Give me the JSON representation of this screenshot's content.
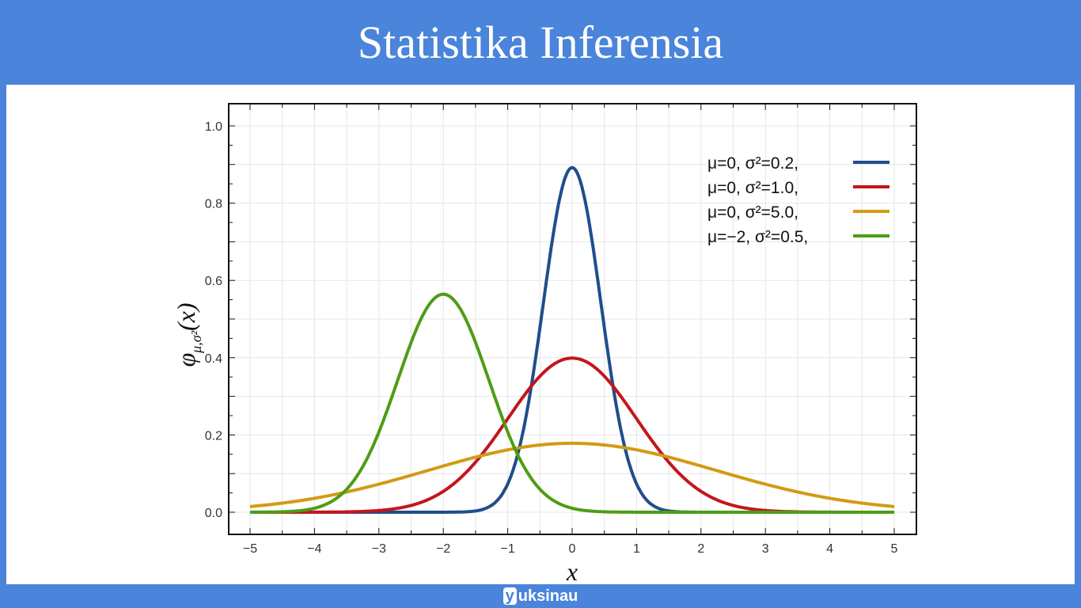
{
  "slide": {
    "title": "Statistika Inferensia"
  },
  "footer": {
    "logo_letter": "y",
    "logo_text": "uksinau"
  },
  "chart_data": {
    "type": "line",
    "title": "",
    "xlabel": "x",
    "ylabel": "φ_{μ,σ²}(x)",
    "ylabel_main": "φ",
    "ylabel_sub": "μ,σ²",
    "ylabel_arg": "(x)",
    "xlim": [
      -5.3,
      5.3
    ],
    "ylim": [
      -0.05,
      1.05
    ],
    "x_ticks": [
      "-5",
      "-4",
      "-3",
      "-2",
      "-1",
      "0",
      "1",
      "2",
      "3",
      "4",
      "5"
    ],
    "y_ticks": [
      "0.0",
      "0.2",
      "0.4",
      "0.6",
      "0.8",
      "1.0"
    ],
    "grid": true,
    "legend_position": "top-right",
    "series": [
      {
        "name": "μ=0,  σ²=0.2,",
        "mu": 0,
        "sigma2": 0.2,
        "color": "#1f4e8c"
      },
      {
        "name": "μ=0,  σ²=1.0,",
        "mu": 0,
        "sigma2": 1.0,
        "color": "#c3161c"
      },
      {
        "name": "μ=0,  σ²=5.0,",
        "mu": 0,
        "sigma2": 5.0,
        "color": "#d39a14"
      },
      {
        "name": "μ=−2, σ²=0.5,",
        "mu": -2,
        "sigma2": 0.5,
        "color": "#4e9d15"
      }
    ]
  }
}
